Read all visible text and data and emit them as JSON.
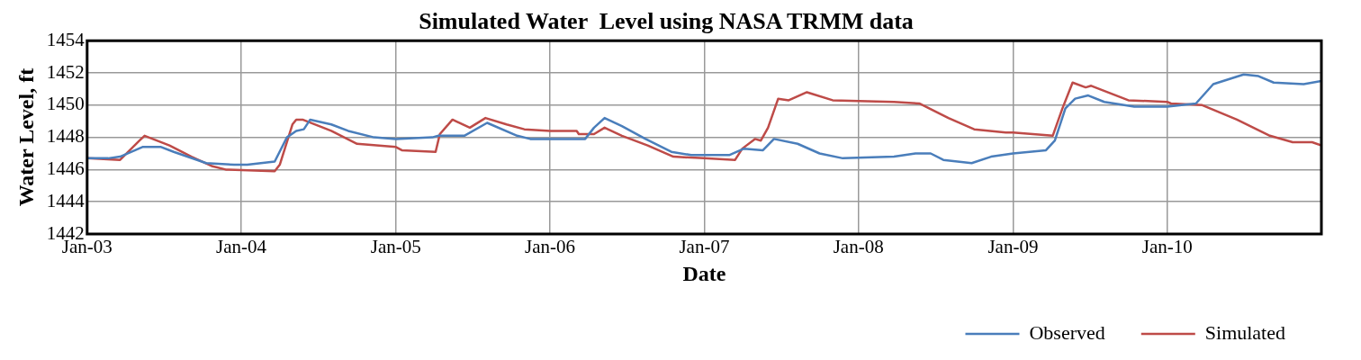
{
  "chart_data": {
    "type": "line",
    "title": "Simulated Water  Level using NASA TRMM data",
    "xlabel": "Date",
    "ylabel": "Water Level, ft",
    "xlim": [
      "2003-01",
      "2011-01"
    ],
    "xticks": [
      {
        "value": "2003-01",
        "label": "Jan-03"
      },
      {
        "value": "2004-01",
        "label": "Jan-04"
      },
      {
        "value": "2005-01",
        "label": "Jan-05"
      },
      {
        "value": "2006-01",
        "label": "Jan-06"
      },
      {
        "value": "2007-01",
        "label": "Jan-07"
      },
      {
        "value": "2008-01",
        "label": "Jan-08"
      },
      {
        "value": "2009-01",
        "label": "Jan-09"
      },
      {
        "value": "2010-01",
        "label": "Jan-10"
      },
      {
        "value": "2011-01",
        "label": null
      }
    ],
    "ylim": [
      1442,
      1454
    ],
    "yticks": [
      1442,
      1444,
      1446,
      1448,
      1450,
      1452,
      1454
    ],
    "grid": true,
    "legend": "bottom right",
    "marker": "none",
    "line_style": "solid",
    "series": [
      {
        "name": "Observed",
        "color": "#4a7ebb",
        "x": [
          "2003-01",
          "2003-02-20",
          "2003-03-20",
          "2003-05-12",
          "2003-06-25",
          "2003-07-25",
          "2003-10-10",
          "2003-12-15",
          "2004-01-15",
          "2004-03-20",
          "2004-04-18",
          "2004-05-10",
          "2004-05-28",
          "2004-06-12",
          "2004-08-01",
          "2004-09-10",
          "2004-11-10",
          "2005-01",
          "2005-03-28",
          "2005-04-12",
          "2005-06-12",
          "2005-08-05",
          "2005-10-15",
          "2005-11-15",
          "2006-01",
          "2006-03-25",
          "2006-04-15",
          "2006-05-10",
          "2006-06-20",
          "2006-08-15",
          "2006-10-15",
          "2006-12-01",
          "2007-03-01",
          "2007-04-05",
          "2007-05-20",
          "2007-06-15",
          "2007-08-10",
          "2007-10-01",
          "2007-11-25",
          "2008-03-25",
          "2008-05-15",
          "2008-06-20",
          "2008-07-20",
          "2008-09-25",
          "2008-11-10",
          "2009-01",
          "2009-03-20",
          "2009-04-10",
          "2009-05-05",
          "2009-05-28",
          "2009-06-28",
          "2009-08-05",
          "2009-10-15",
          "2010-01",
          "2010-03-10",
          "2010-04-20",
          "2010-07-01",
          "2010-08-05",
          "2010-09-10",
          "2010-11-20",
          "2011-01"
        ],
        "values": [
          1446.7,
          1446.7,
          1446.8,
          1447.4,
          1447.4,
          1447.1,
          1446.4,
          1446.3,
          1446.3,
          1446.5,
          1448.0,
          1448.4,
          1448.5,
          1449.1,
          1448.8,
          1448.4,
          1448.0,
          1447.9,
          1448.0,
          1448.1,
          1448.1,
          1448.9,
          1448.1,
          1447.9,
          1447.9,
          1447.9,
          1448.6,
          1449.2,
          1448.7,
          1447.9,
          1447.1,
          1446.9,
          1446.9,
          1447.3,
          1447.2,
          1447.9,
          1447.6,
          1447.0,
          1446.7,
          1446.8,
          1447.0,
          1447.0,
          1446.6,
          1446.4,
          1446.8,
          1447.0,
          1447.2,
          1447.8,
          1449.8,
          1450.4,
          1450.6,
          1450.2,
          1449.9,
          1449.9,
          1450.1,
          1451.3,
          1451.9,
          1451.8,
          1451.4,
          1451.3,
          1451.5
        ]
      },
      {
        "name": "Simulated",
        "color": "#be4b48",
        "x": [
          "2003-01",
          "2003-03-20",
          "2003-05-05",
          "2003-05-17",
          "2003-07-15",
          "2003-09-05",
          "2003-10-25",
          "2003-11-25",
          "2004-03-20",
          "2004-04-01",
          "2004-05-01",
          "2004-05-10",
          "2004-05-25",
          "2004-08-01",
          "2004-10-01",
          "2005-01",
          "2005-01-15",
          "2005-04-05",
          "2005-04-15",
          "2005-05-15",
          "2005-06-25",
          "2005-08-01",
          "2005-09-20",
          "2005-11-01",
          "2006-01",
          "2006-03-05",
          "2006-03-10",
          "2006-04-15",
          "2006-05-10",
          "2006-06-20",
          "2006-08-20",
          "2006-10-20",
          "2007-01",
          "2007-03-15",
          "2007-04-01",
          "2007-05-01",
          "2007-05-15",
          "2007-06-01",
          "2007-06-25",
          "2007-07-20",
          "2007-09-01",
          "2007-11-01",
          "2008-03-25",
          "2008-05-25",
          "2008-08-01",
          "2008-10-01",
          "2008-12-15",
          "2009-01",
          "2009-04-05",
          "2009-04-28",
          "2009-05-22",
          "2009-06-22",
          "2009-07-05",
          "2009-10-01",
          "2010-01",
          "2010-01-10",
          "2010-03-25",
          "2010-06-15",
          "2010-09-01",
          "2010-10-25",
          "2010-12-10",
          "2011-01"
        ],
        "values": [
          1446.7,
          1446.6,
          1447.8,
          1448.1,
          1447.5,
          1446.8,
          1446.2,
          1446.0,
          1445.9,
          1446.3,
          1448.8,
          1449.1,
          1449.1,
          1448.4,
          1447.6,
          1447.4,
          1447.2,
          1447.1,
          1448.2,
          1449.1,
          1448.6,
          1449.2,
          1448.8,
          1448.5,
          1448.4,
          1448.4,
          1448.2,
          1448.2,
          1448.6,
          1448.1,
          1447.5,
          1446.8,
          1446.7,
          1446.6,
          1447.3,
          1447.9,
          1447.8,
          1448.6,
          1450.4,
          1450.3,
          1450.8,
          1450.3,
          1450.2,
          1450.1,
          1449.2,
          1448.5,
          1448.3,
          1448.3,
          1448.1,
          1449.8,
          1451.4,
          1451.1,
          1451.2,
          1450.3,
          1450.2,
          1450.1,
          1450.0,
          1449.1,
          1448.1,
          1447.7,
          1447.7,
          1447.5
        ]
      }
    ]
  }
}
